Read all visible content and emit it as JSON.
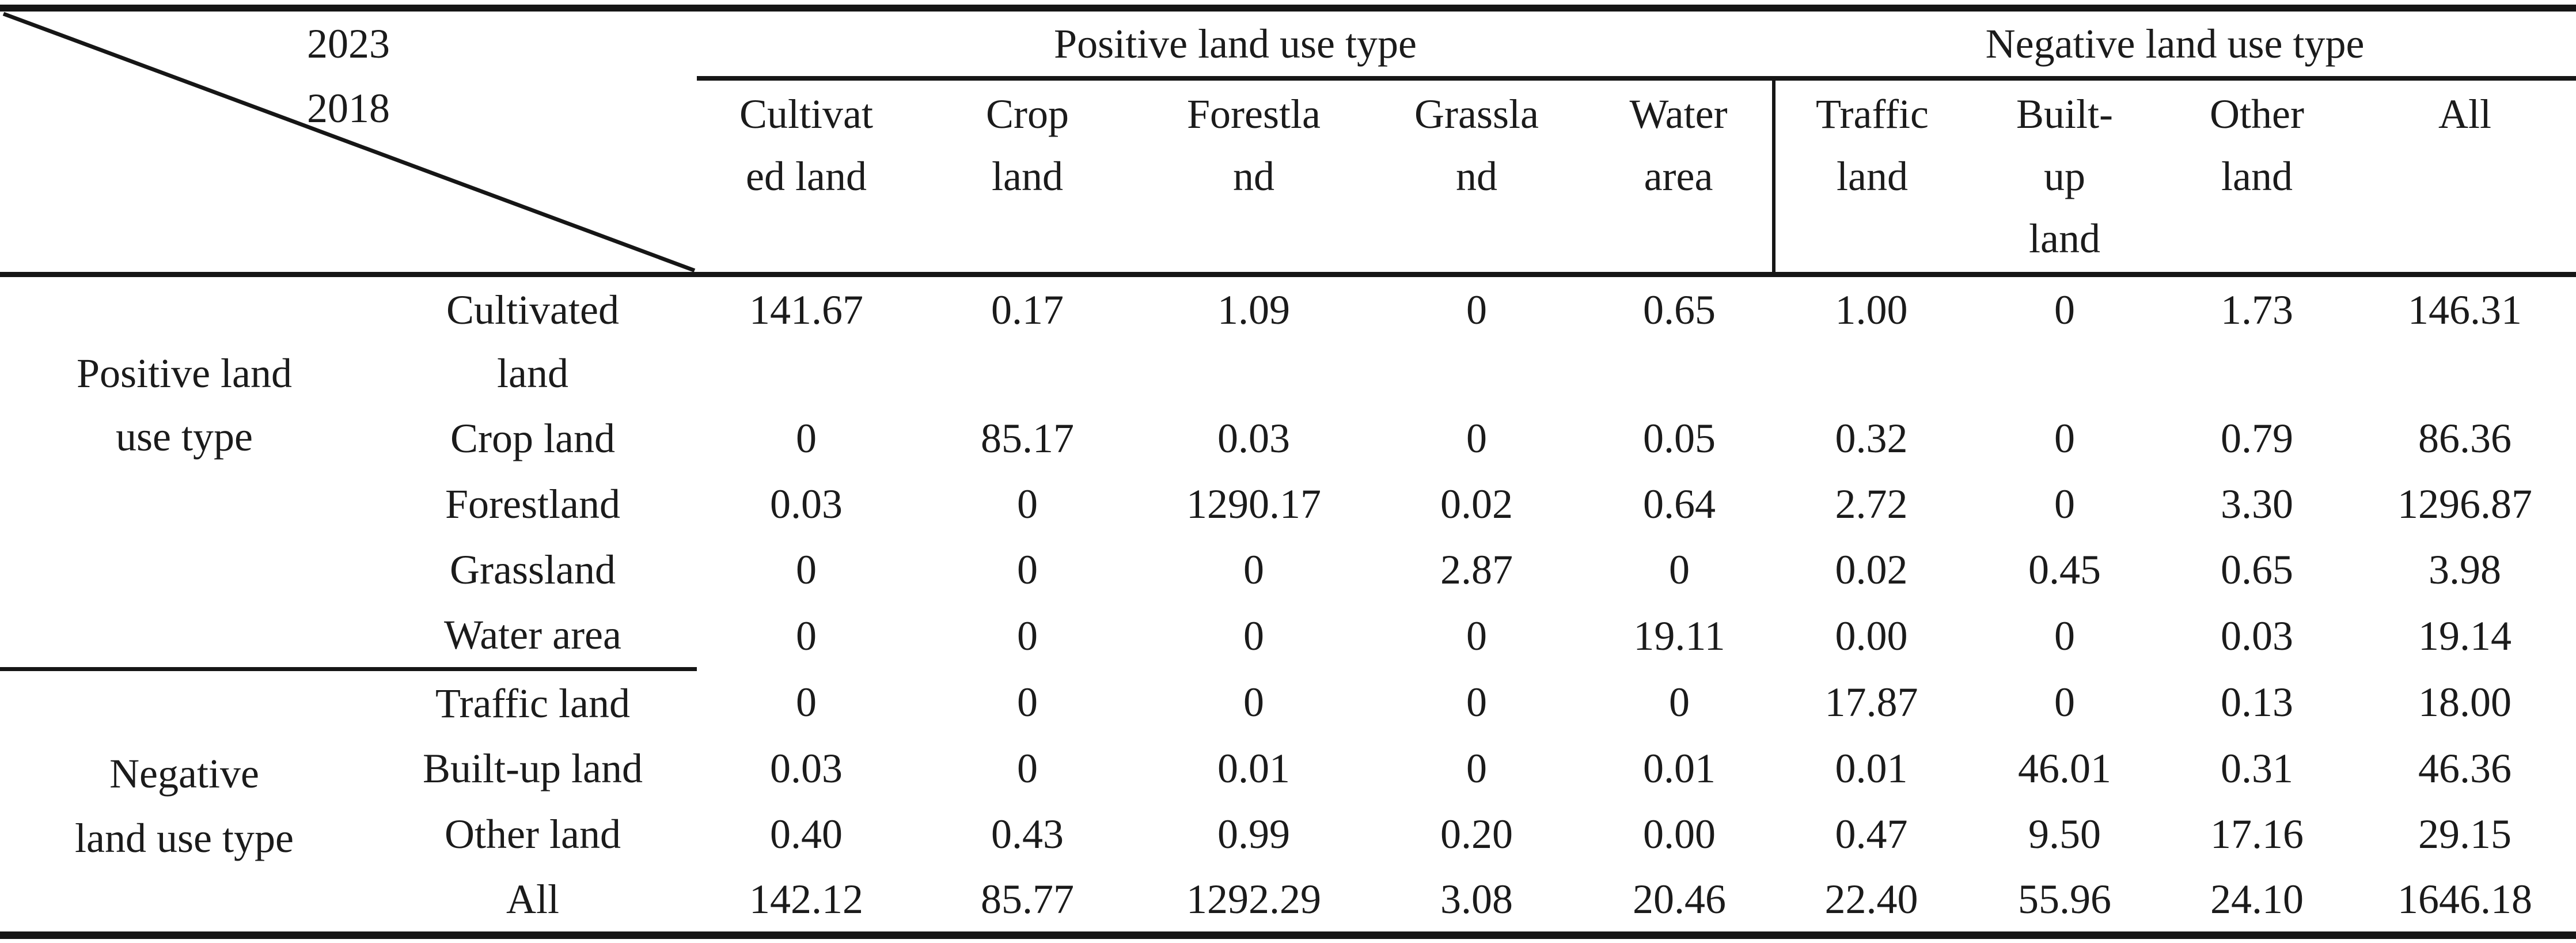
{
  "table": {
    "corner": {
      "year_top": "2023",
      "year_bottom": "2018"
    },
    "group_headers": {
      "positive": "Positive land use type",
      "negative": "Negative land use type"
    },
    "column_headers": [
      {
        "lines": [
          "Cultivat",
          "ed land"
        ]
      },
      {
        "lines": [
          "Crop",
          "land"
        ]
      },
      {
        "lines": [
          "Forestla",
          "nd"
        ]
      },
      {
        "lines": [
          "Grassla",
          "nd"
        ]
      },
      {
        "lines": [
          "Water",
          "area"
        ]
      },
      {
        "lines": [
          "Traffic",
          "land"
        ]
      },
      {
        "lines": [
          "Built-",
          "up",
          "land"
        ]
      },
      {
        "lines": [
          "Other",
          "land"
        ]
      },
      {
        "lines": [
          "All"
        ]
      }
    ],
    "row_groups": {
      "positive": {
        "lines": [
          "Positive land",
          "use type"
        ]
      },
      "negative": {
        "lines": [
          "Negative",
          "land use type"
        ]
      }
    },
    "rows": [
      {
        "label_lines": [
          "Cultivated",
          "land"
        ],
        "values": [
          "141.67",
          "0.17",
          "1.09",
          "0",
          "0.65",
          "1.00",
          "0",
          "1.73",
          "146.31"
        ]
      },
      {
        "label_lines": [
          "Crop land"
        ],
        "values": [
          "0",
          "85.17",
          "0.03",
          "0",
          "0.05",
          "0.32",
          "0",
          "0.79",
          "86.36"
        ]
      },
      {
        "label_lines": [
          "Forestland"
        ],
        "values": [
          "0.03",
          "0",
          "1290.17",
          "0.02",
          "0.64",
          "2.72",
          "0",
          "3.30",
          "1296.87"
        ]
      },
      {
        "label_lines": [
          "Grassland"
        ],
        "values": [
          "0",
          "0",
          "0",
          "2.87",
          "0",
          "0.02",
          "0.45",
          "0.65",
          "3.98"
        ]
      },
      {
        "label_lines": [
          "Water area"
        ],
        "values": [
          "0",
          "0",
          "0",
          "0",
          "19.11",
          "0.00",
          "0",
          "0.03",
          "19.14"
        ]
      },
      {
        "label_lines": [
          "Traffic land"
        ],
        "values": [
          "0",
          "0",
          "0",
          "0",
          "0",
          "17.87",
          "0",
          "0.13",
          "18.00"
        ]
      },
      {
        "label_lines": [
          "Built-up land"
        ],
        "values": [
          "0.03",
          "0",
          "0.01",
          "0",
          "0.01",
          "0.01",
          "46.01",
          "0.31",
          "46.36"
        ]
      },
      {
        "label_lines": [
          "Other land"
        ],
        "values": [
          "0.40",
          "0.43",
          "0.99",
          "0.20",
          "0.00",
          "0.47",
          "9.50",
          "17.16",
          "29.15"
        ]
      },
      {
        "label_lines": [
          "All"
        ],
        "values": [
          "142.12",
          "85.77",
          "1292.29",
          "3.08",
          "20.46",
          "22.40",
          "55.96",
          "24.10",
          "1646.18"
        ]
      }
    ]
  }
}
